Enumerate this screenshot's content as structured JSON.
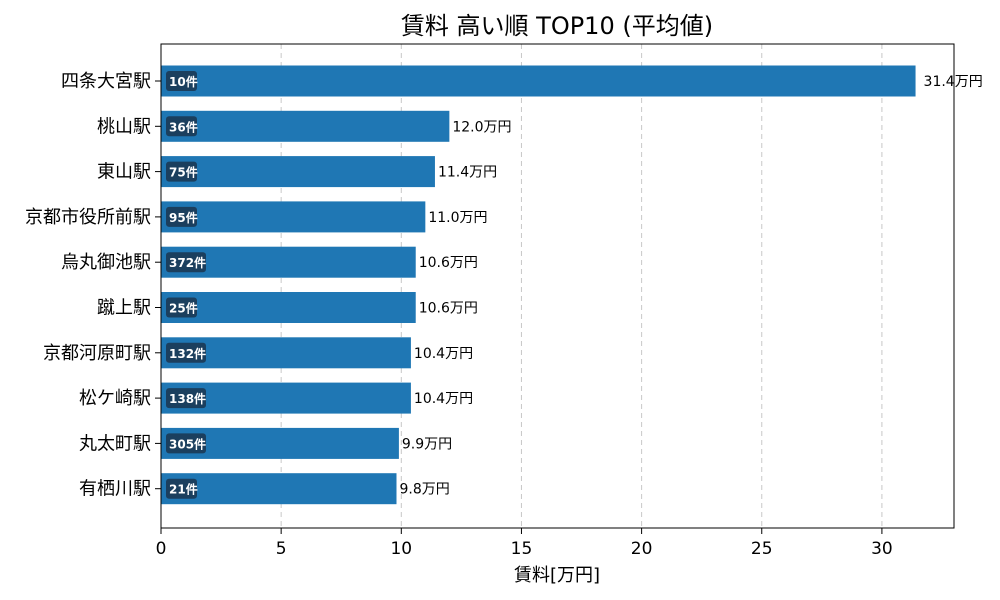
{
  "chart_data": {
    "type": "bar",
    "orientation": "horizontal",
    "title": "賃料 高い順 TOP10 (平均値)",
    "xlabel": "賃料[万円]",
    "ylabel": "",
    "xlim": [
      0,
      33
    ],
    "xticks": [
      0,
      5,
      10,
      15,
      20,
      25,
      30
    ],
    "grid": "x-dashed",
    "bar_color": "#1f77b4",
    "badge_color": "#1b3f5e",
    "categories": [
      "四条大宮駅",
      "桃山駅",
      "東山駅",
      "京都市役所前駅",
      "烏丸御池駅",
      "蹴上駅",
      "京都河原町駅",
      "松ケ崎駅",
      "丸太町駅",
      "有栖川駅"
    ],
    "values": [
      31.4,
      12.0,
      11.4,
      11.0,
      10.6,
      10.6,
      10.4,
      10.4,
      9.9,
      9.8
    ],
    "value_labels": [
      "31.4万円",
      "12.0万円",
      "11.4万円",
      "11.0万円",
      "10.6万円",
      "10.6万円",
      "10.4万円",
      "10.4万円",
      "9.9万円",
      "9.8万円"
    ],
    "counts": [
      "10件",
      "36件",
      "75件",
      "95件",
      "372件",
      "25件",
      "132件",
      "138件",
      "305件",
      "21件"
    ]
  }
}
